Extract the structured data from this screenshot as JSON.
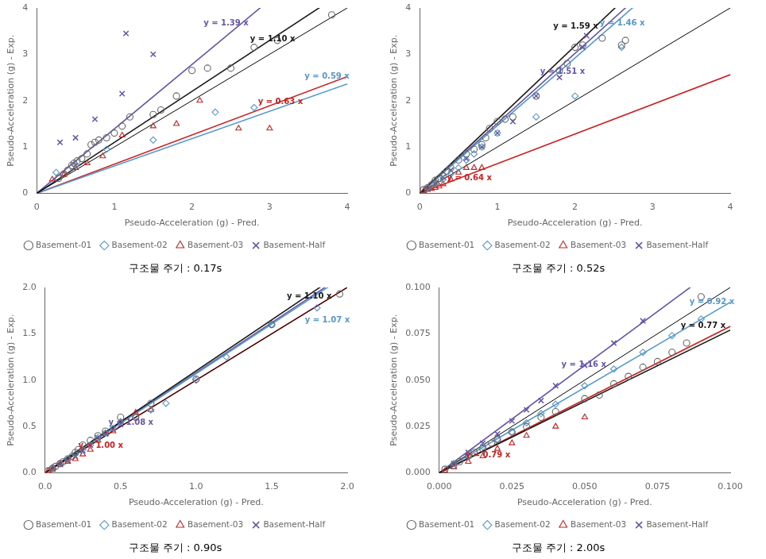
{
  "chart_data": [
    {
      "type": "scatter",
      "title": "구조물 주기 : 0.17s",
      "xlabel": "Pseudo-Acceleration (g) - Pred.",
      "ylabel": "Pseudo-Acceleration (g) - Exp.",
      "xlim": [
        0.0,
        4.0
      ],
      "ylim": [
        0.0,
        4.0
      ],
      "xticks": [
        0,
        1,
        2,
        3,
        4
      ],
      "yticks": [
        0,
        1,
        2,
        3,
        4
      ],
      "grid": false,
      "legend": "bottom",
      "series": [
        {
          "name": "Basement-01",
          "color": "#666666",
          "marker": "circle",
          "x": [
            0.28,
            0.35,
            0.4,
            0.45,
            0.48,
            0.52,
            0.58,
            0.65,
            0.7,
            0.75,
            0.8,
            0.9,
            1.0,
            1.1,
            1.2,
            1.5,
            1.6,
            1.8,
            2.0,
            2.2,
            2.5,
            2.8,
            3.1,
            3.8
          ],
          "values": [
            0.32,
            0.42,
            0.5,
            0.6,
            0.65,
            0.7,
            0.75,
            0.85,
            1.05,
            1.1,
            1.15,
            1.2,
            1.3,
            1.45,
            1.65,
            1.7,
            1.8,
            2.1,
            2.65,
            2.7,
            2.7,
            3.15,
            3.3,
            3.85
          ]
        },
        {
          "name": "Basement-02",
          "color": "#5599cc",
          "marker": "diamond",
          "x": [
            0.25,
            0.5,
            0.9,
            1.5,
            2.3,
            2.8
          ],
          "values": [
            0.45,
            0.6,
            0.95,
            1.15,
            1.75,
            1.85
          ]
        },
        {
          "name": "Basement-03",
          "color": "#cc2222",
          "marker": "triangle",
          "x": [
            0.2,
            0.35,
            0.5,
            0.65,
            0.85,
            1.1,
            1.5,
            1.8,
            2.1,
            2.6,
            3.0
          ],
          "values": [
            0.3,
            0.4,
            0.55,
            0.65,
            0.8,
            1.25,
            1.45,
            1.5,
            2.0,
            1.4,
            1.4
          ]
        },
        {
          "name": "Basement-Half",
          "color": "#6655aa",
          "marker": "x",
          "x": [
            0.3,
            0.5,
            0.75,
            1.1,
            1.15,
            1.5
          ],
          "values": [
            1.1,
            1.2,
            1.6,
            2.15,
            3.45,
            3.0
          ]
        },
        {
          "type": "line",
          "color": "#000000",
          "x": [
            0.0,
            4.0
          ],
          "values": [
            0.0,
            4.0
          ]
        },
        {
          "type": "line",
          "color": "#1a1a1a",
          "slope": 1.1
        },
        {
          "type": "line",
          "color": "#6655aa",
          "slope": 1.39
        },
        {
          "type": "line",
          "color": "#5599cc",
          "slope": 0.59
        },
        {
          "type": "line",
          "color": "#cc2222",
          "slope": 0.63
        }
      ],
      "annotations": [
        {
          "text": "y = 1.10 x",
          "x": 2.75,
          "y": 3.28,
          "color": "#1a1a1a"
        },
        {
          "text": "y = 1.39 x",
          "x": 2.15,
          "y": 3.62,
          "color": "#6655aa"
        },
        {
          "text": "y = 0.59 x",
          "x": 3.45,
          "y": 2.48,
          "color": "#5599cc"
        },
        {
          "text": "y = 0.63 x",
          "x": 2.85,
          "y": 1.93,
          "color": "#cc2222"
        }
      ]
    },
    {
      "type": "scatter",
      "title": "구조물 주기 : 0.52s",
      "xlabel": "Pseudo-Acceleration (g) - Pred.",
      "ylabel": "Pseudo-Acceleration (g) - Exp.",
      "xlim": [
        0.0,
        4.0
      ],
      "ylim": [
        0.0,
        4.0
      ],
      "xticks": [
        0,
        1,
        2,
        3,
        4
      ],
      "yticks": [
        0,
        1,
        2,
        3,
        4
      ],
      "grid": false,
      "legend": "bottom",
      "series": [
        {
          "name": "Basement-01",
          "color": "#666666",
          "marker": "circle",
          "x": [
            0.05,
            0.1,
            0.15,
            0.18,
            0.2,
            0.25,
            0.3,
            0.35,
            0.4,
            0.5,
            0.6,
            0.7,
            0.8,
            0.85,
            0.9,
            1.0,
            1.1,
            1.2,
            1.5,
            1.8,
            1.9,
            2.0,
            2.1,
            2.35,
            2.6,
            2.65
          ],
          "values": [
            0.08,
            0.12,
            0.18,
            0.22,
            0.28,
            0.32,
            0.38,
            0.48,
            0.55,
            0.72,
            0.85,
            0.95,
            1.05,
            1.2,
            1.4,
            1.55,
            1.6,
            1.65,
            2.1,
            2.65,
            2.8,
            3.15,
            3.2,
            3.35,
            3.2,
            3.3
          ]
        },
        {
          "name": "Basement-02",
          "color": "#5599cc",
          "marker": "diamond",
          "x": [
            0.1,
            0.2,
            0.3,
            0.4,
            0.5,
            0.6,
            0.7,
            0.8,
            1.0,
            1.5,
            2.0,
            2.6
          ],
          "values": [
            0.12,
            0.2,
            0.3,
            0.42,
            0.55,
            0.72,
            0.85,
            1.0,
            1.3,
            1.65,
            2.1,
            3.15
          ]
        },
        {
          "name": "Basement-03",
          "color": "#cc2222",
          "marker": "triangle",
          "x": [
            0.05,
            0.1,
            0.15,
            0.2,
            0.25,
            0.3,
            0.4,
            0.5,
            0.6,
            0.7,
            0.8
          ],
          "values": [
            0.05,
            0.08,
            0.1,
            0.12,
            0.15,
            0.2,
            0.3,
            0.45,
            0.55,
            0.55,
            0.55
          ]
        },
        {
          "name": "Basement-Half",
          "color": "#6655aa",
          "marker": "x",
          "x": [
            0.1,
            0.2,
            0.3,
            0.4,
            0.6,
            0.8,
            1.0,
            1.2,
            1.5,
            1.8,
            2.1,
            2.15
          ],
          "values": [
            0.1,
            0.22,
            0.35,
            0.5,
            0.75,
            1.0,
            1.3,
            1.55,
            2.1,
            2.5,
            3.15,
            3.4
          ]
        },
        {
          "type": "line",
          "color": "#000000",
          "x": [
            0.0,
            4.0
          ],
          "values": [
            0.0,
            4.0
          ]
        },
        {
          "type": "line",
          "color": "#1a1a1a",
          "slope": 1.59
        },
        {
          "type": "line",
          "color": "#5599cc",
          "slope": 1.46
        },
        {
          "type": "line",
          "color": "#6655aa",
          "slope": 1.51
        },
        {
          "type": "line",
          "color": "#cc2222",
          "slope": 0.64
        }
      ],
      "annotations": [
        {
          "text": "y = 1.59 x",
          "x": 1.72,
          "y": 3.55,
          "color": "#1a1a1a"
        },
        {
          "text": "y = 1.46 x",
          "x": 2.32,
          "y": 3.62,
          "color": "#5599cc"
        },
        {
          "text": "y = 1.51 x",
          "x": 1.55,
          "y": 2.58,
          "color": "#6655aa"
        },
        {
          "text": "y = 0.64 x",
          "x": 0.35,
          "y": 0.28,
          "color": "#cc2222"
        }
      ]
    },
    {
      "type": "scatter",
      "title": "구조물 주기 : 0.90s",
      "xlabel": "Pseudo-Acceleration (g) - Pred.",
      "ylabel": "Pseudo-Acceleration (g) - Exp.",
      "xlim": [
        0.0,
        2.0
      ],
      "ylim": [
        0.0,
        2.0
      ],
      "xticks": [
        {
          "value": 0,
          "label": "0.0"
        },
        0.5,
        {
          "value": 1,
          "label": "1.0"
        },
        1.5,
        {
          "value": 2,
          "label": "2.0"
        }
      ],
      "yticks": [
        {
          "value": 0,
          "label": "0.0"
        },
        0.5,
        {
          "value": 1,
          "label": "1.0"
        },
        1.5,
        {
          "value": 2,
          "label": "2.0"
        }
      ],
      "grid": false,
      "legend": "bottom",
      "series": [
        {
          "name": "Basement-01",
          "color": "#666666",
          "marker": "circle",
          "x": [
            0.02,
            0.05,
            0.07,
            0.1,
            0.12,
            0.15,
            0.18,
            0.2,
            0.22,
            0.25,
            0.3,
            0.35,
            0.4,
            0.5,
            0.6,
            0.7,
            1.0,
            1.5,
            1.95
          ],
          "values": [
            0.02,
            0.05,
            0.07,
            0.1,
            0.12,
            0.15,
            0.18,
            0.22,
            0.25,
            0.3,
            0.35,
            0.4,
            0.45,
            0.6,
            0.6,
            0.75,
            1.01,
            1.6,
            1.93
          ]
        },
        {
          "name": "Basement-02",
          "color": "#5599cc",
          "marker": "diamond",
          "x": [
            0.05,
            0.1,
            0.15,
            0.2,
            0.25,
            0.3,
            0.35,
            0.4,
            0.45,
            0.5,
            0.6,
            0.7,
            0.8,
            1.0,
            1.2,
            1.5,
            1.8
          ],
          "values": [
            0.05,
            0.1,
            0.15,
            0.2,
            0.25,
            0.3,
            0.38,
            0.43,
            0.48,
            0.55,
            0.6,
            0.68,
            0.75,
            1.0,
            1.25,
            1.6,
            1.78
          ]
        },
        {
          "name": "Basement-03",
          "color": "#cc2222",
          "marker": "triangle",
          "x": [
            0.02,
            0.05,
            0.1,
            0.15,
            0.2,
            0.25,
            0.3,
            0.35,
            0.4,
            0.45,
            0.5,
            0.6,
            0.7
          ],
          "values": [
            0.02,
            0.04,
            0.09,
            0.12,
            0.15,
            0.2,
            0.25,
            0.35,
            0.42,
            0.45,
            0.55,
            0.65,
            0.68
          ]
        },
        {
          "name": "Basement-Half",
          "color": "#6655aa",
          "marker": "x",
          "x": [
            0.05,
            0.1,
            0.15,
            0.2,
            0.25,
            0.3,
            0.35,
            0.4,
            0.45,
            0.5
          ],
          "values": [
            0.04,
            0.09,
            0.13,
            0.18,
            0.24,
            0.3,
            0.38,
            0.42,
            0.47,
            0.52
          ]
        },
        {
          "type": "line",
          "color": "#000000",
          "x": [
            0.0,
            2.0
          ],
          "values": [
            0.0,
            2.0
          ]
        },
        {
          "type": "line",
          "color": "#1a1a1a",
          "slope": 1.1
        },
        {
          "type": "line",
          "color": "#5599cc",
          "slope": 1.07
        },
        {
          "type": "line",
          "color": "#6655aa",
          "slope": 1.08
        },
        {
          "type": "line",
          "color": "#cc2222",
          "slope": 1.0
        }
      ],
      "annotations": [
        {
          "text": "y = 1.10 x",
          "x": 1.6,
          "y": 1.88,
          "color": "#1a1a1a"
        },
        {
          "text": "y = 1.07 x",
          "x": 1.72,
          "y": 1.62,
          "color": "#5599cc"
        },
        {
          "text": "y = 1.08 x",
          "x": 0.42,
          "y": 0.52,
          "color": "#6655aa"
        },
        {
          "text": "y = 1.00 x",
          "x": 0.22,
          "y": 0.27,
          "color": "#cc2222"
        }
      ]
    },
    {
      "type": "scatter",
      "title": "구조물 주기 : 2.00s",
      "xlabel": "Pseudo-Acceleration (g) - Pred.",
      "ylabel": "Pseudo-Acceleration (g) - Exp.",
      "xlim": [
        0.0,
        0.1
      ],
      "ylim": [
        0.0,
        0.1
      ],
      "xticks": [
        {
          "value": 0,
          "label": "0.000"
        },
        0.025,
        {
          "value": 0.05,
          "label": "0.050"
        },
        0.075,
        {
          "value": 0.1,
          "label": "0.100"
        }
      ],
      "yticks": [
        {
          "value": 0,
          "label": "0.000"
        },
        0.025,
        {
          "value": 0.05,
          "label": "0.050"
        },
        0.075,
        {
          "value": 0.1,
          "label": "0.100"
        }
      ],
      "grid": false,
      "legend": "bottom",
      "series": [
        {
          "name": "Basement-01",
          "color": "#666666",
          "marker": "circle",
          "x": [
            0.002,
            0.005,
            0.007,
            0.01,
            0.012,
            0.015,
            0.018,
            0.02,
            0.025,
            0.03,
            0.035,
            0.04,
            0.05,
            0.055,
            0.06,
            0.065,
            0.07,
            0.075,
            0.08,
            0.085,
            0.09
          ],
          "values": [
            0.002,
            0.004,
            0.006,
            0.009,
            0.011,
            0.013,
            0.016,
            0.018,
            0.022,
            0.025,
            0.03,
            0.033,
            0.04,
            0.042,
            0.048,
            0.052,
            0.057,
            0.06,
            0.065,
            0.07,
            0.095
          ]
        },
        {
          "name": "Basement-02",
          "color": "#5599cc",
          "marker": "diamond",
          "x": [
            0.005,
            0.01,
            0.015,
            0.02,
            0.025,
            0.03,
            0.035,
            0.04,
            0.05,
            0.06,
            0.07,
            0.08,
            0.09
          ],
          "values": [
            0.005,
            0.009,
            0.014,
            0.018,
            0.022,
            0.027,
            0.032,
            0.037,
            0.047,
            0.056,
            0.065,
            0.074,
            0.083
          ]
        },
        {
          "name": "Basement-03",
          "color": "#cc2222",
          "marker": "triangle",
          "x": [
            0.002,
            0.005,
            0.01,
            0.015,
            0.02,
            0.025,
            0.03,
            0.04,
            0.05
          ],
          "values": [
            0.001,
            0.003,
            0.006,
            0.009,
            0.013,
            0.016,
            0.02,
            0.025,
            0.03
          ]
        },
        {
          "name": "Basement-Half",
          "color": "#6655aa",
          "marker": "x",
          "x": [
            0.005,
            0.01,
            0.015,
            0.02,
            0.025,
            0.03,
            0.035,
            0.04,
            0.05,
            0.06,
            0.07
          ],
          "values": [
            0.005,
            0.011,
            0.016,
            0.021,
            0.028,
            0.034,
            0.039,
            0.047,
            0.058,
            0.07,
            0.082
          ]
        },
        {
          "type": "line",
          "color": "#000000",
          "x": [
            0.0,
            0.1
          ],
          "values": [
            0.0,
            0.1
          ]
        },
        {
          "type": "line",
          "color": "#1a1a1a",
          "slope": 0.77
        },
        {
          "type": "line",
          "color": "#5599cc",
          "slope": 0.92
        },
        {
          "type": "line",
          "color": "#6655aa",
          "slope": 1.16
        },
        {
          "type": "line",
          "color": "#cc2222",
          "slope": 0.79
        }
      ],
      "annotations": [
        {
          "text": "y = 0.77 x",
          "x": 0.083,
          "y": 0.078,
          "color": "#1a1a1a"
        },
        {
          "text": "y = 0.92 x",
          "x": 0.086,
          "y": 0.091,
          "color": "#5599cc"
        },
        {
          "text": "y = 1.16 x",
          "x": 0.042,
          "y": 0.057,
          "color": "#6655aa"
        },
        {
          "text": "y = 0.79 x",
          "x": 0.009,
          "y": 0.0085,
          "color": "#cc2222"
        }
      ]
    }
  ]
}
